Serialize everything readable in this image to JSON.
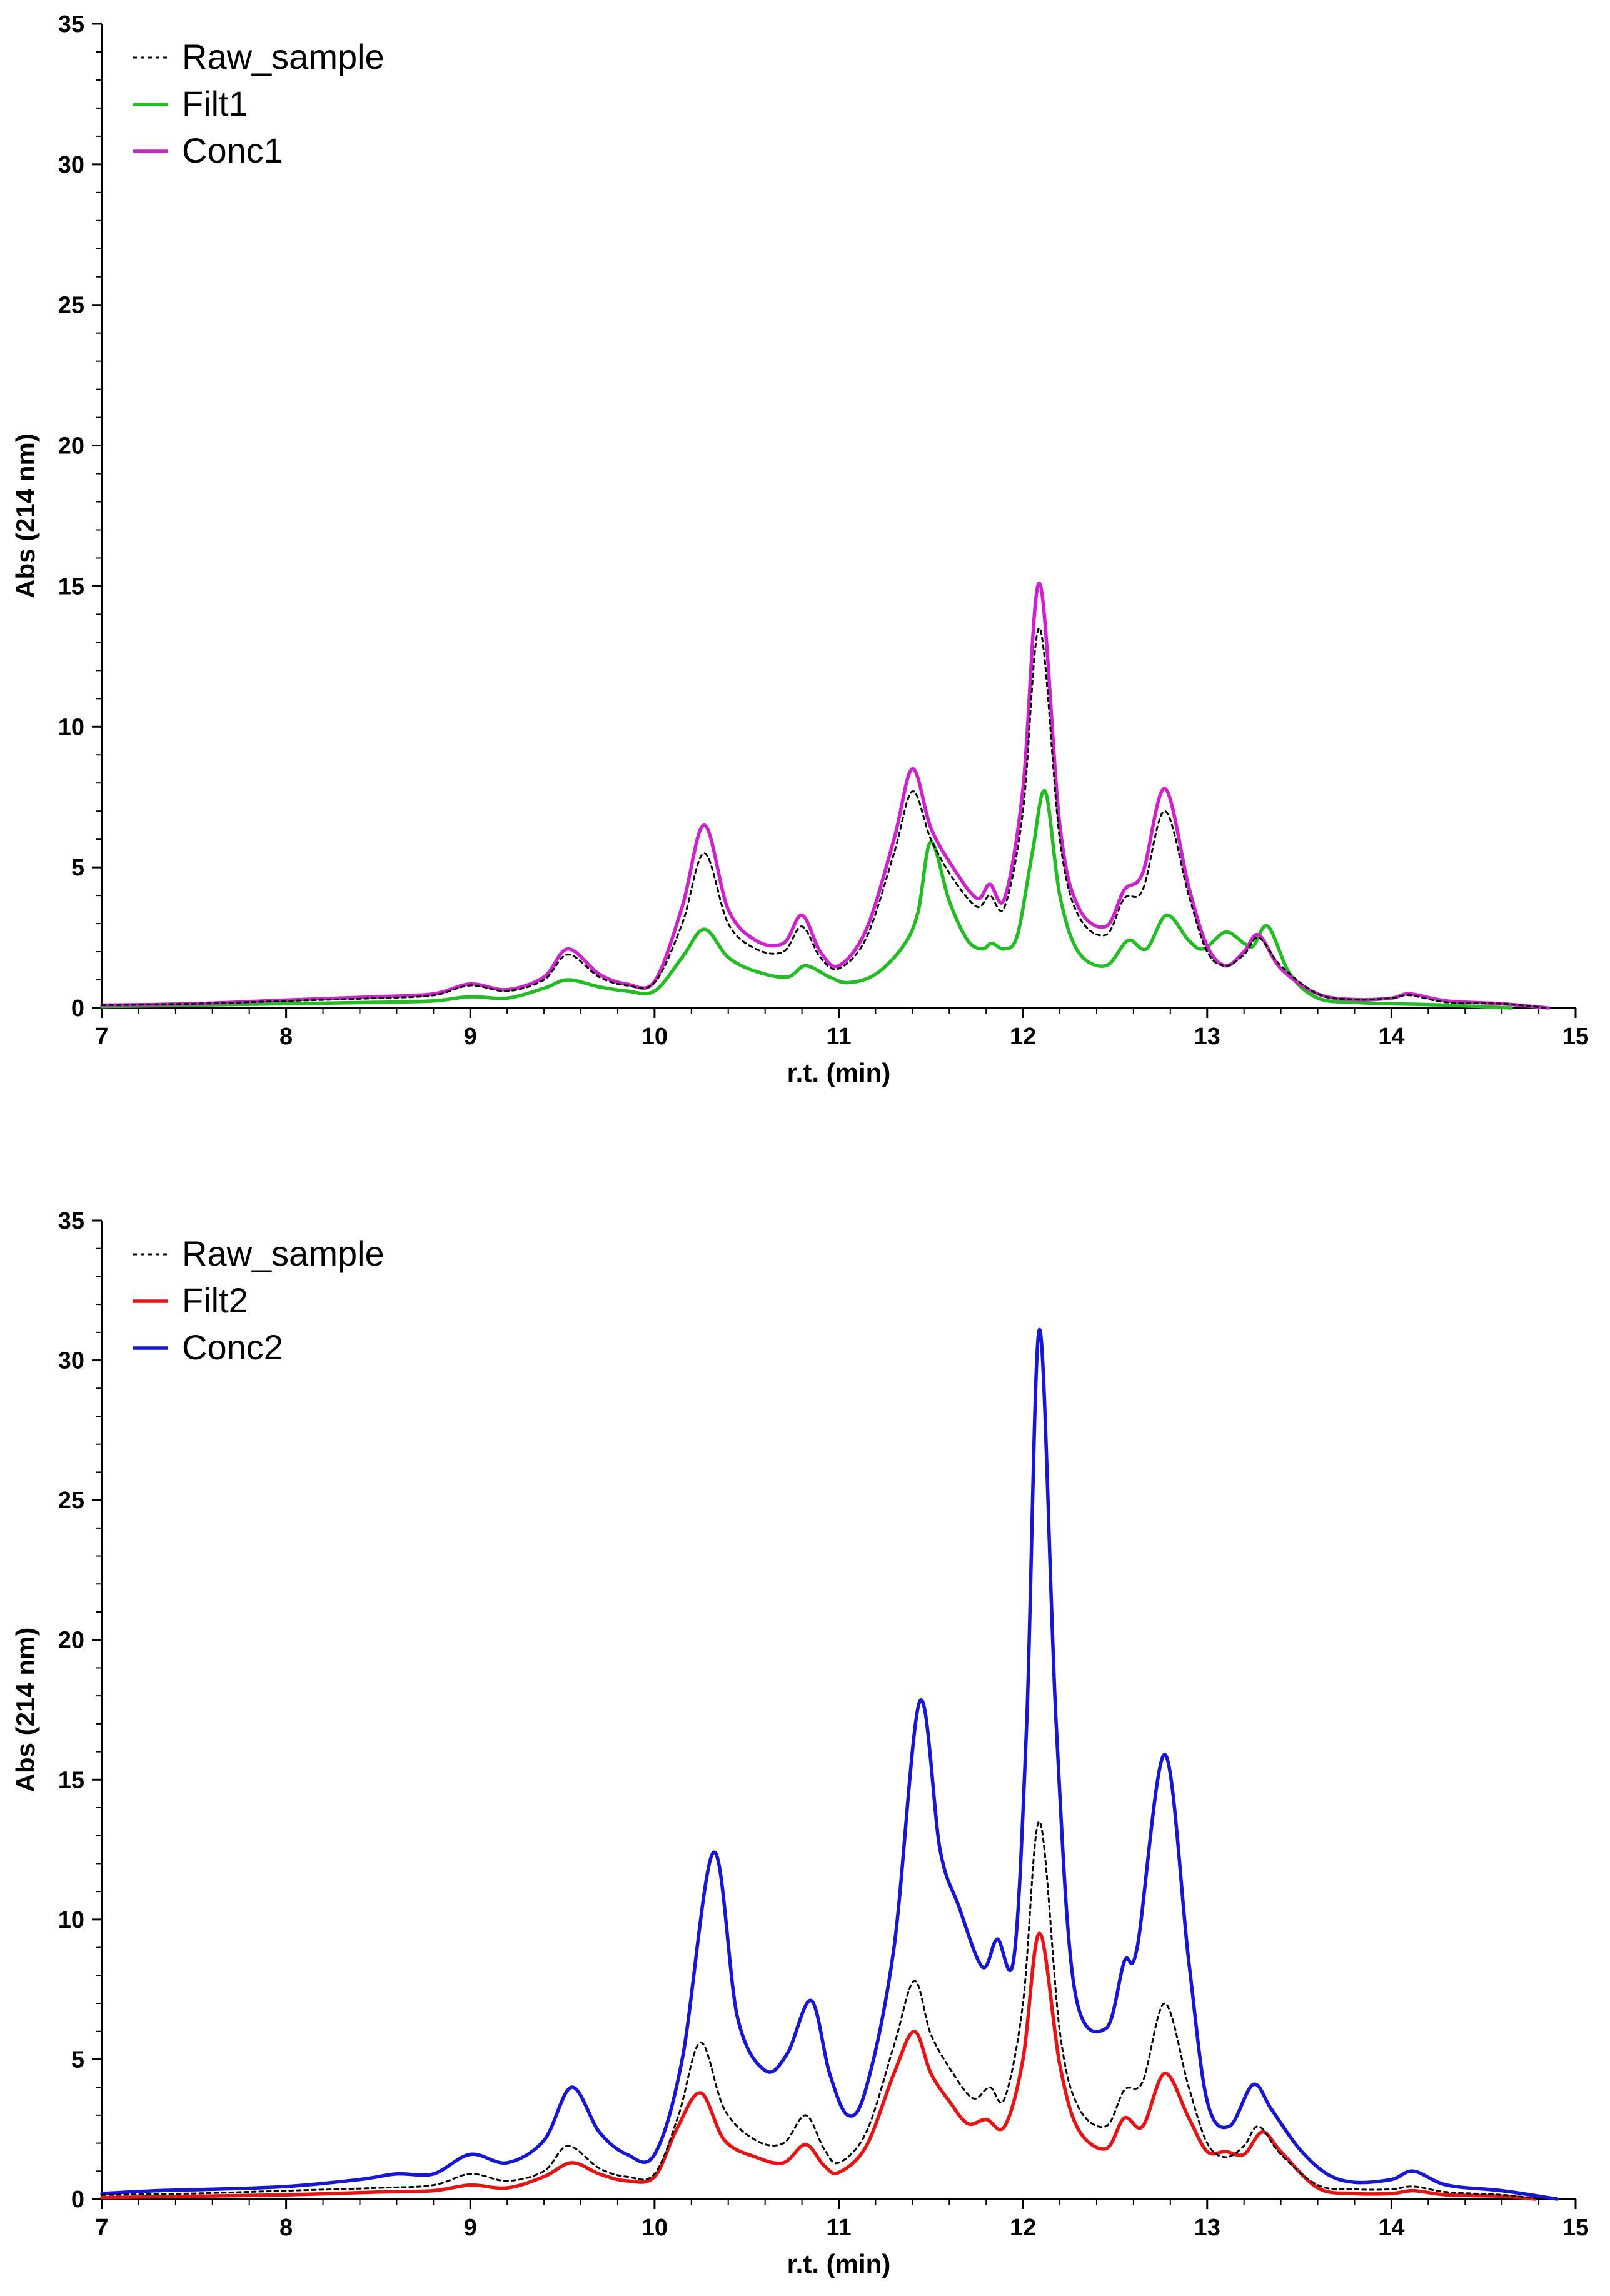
{
  "chart_data": [
    {
      "type": "line",
      "title": "",
      "xlabel": "r.t. (min)",
      "ylabel": "Abs (214 nm)",
      "xlim": [
        7,
        15
      ],
      "ylim": [
        0,
        35
      ],
      "xticks": [
        7,
        8,
        9,
        10,
        11,
        12,
        13,
        14,
        15
      ],
      "yticks": [
        0,
        5,
        10,
        15,
        20,
        25,
        30,
        35
      ],
      "grid": false,
      "legend_position": "top-left",
      "series": [
        {
          "name": "Raw_sample",
          "color": "#000000",
          "style": "dotted",
          "x": [
            7.0,
            7.5,
            8.0,
            8.5,
            8.8,
            9.0,
            9.2,
            9.4,
            9.53,
            9.7,
            9.85,
            10.0,
            10.15,
            10.27,
            10.4,
            10.55,
            10.7,
            10.8,
            10.9,
            11.0,
            11.15,
            11.3,
            11.4,
            11.5,
            11.62,
            11.75,
            11.82,
            11.9,
            12.0,
            12.09,
            12.2,
            12.3,
            12.45,
            12.55,
            12.65,
            12.77,
            12.9,
            13.0,
            13.1,
            13.2,
            13.28,
            13.4,
            13.6,
            13.8,
            14.0,
            14.1,
            14.3,
            14.6,
            14.85
          ],
          "y": [
            0.1,
            0.15,
            0.25,
            0.35,
            0.45,
            0.8,
            0.6,
            1.0,
            1.9,
            1.1,
            0.8,
            0.9,
            3.0,
            5.5,
            3.0,
            2.1,
            2.0,
            2.9,
            1.8,
            1.4,
            2.5,
            5.5,
            7.7,
            6.0,
            4.6,
            3.6,
            4.0,
            3.6,
            7.0,
            13.5,
            6.0,
            3.3,
            2.6,
            3.9,
            4.2,
            7.0,
            4.0,
            2.0,
            1.5,
            1.9,
            2.5,
            1.5,
            0.5,
            0.3,
            0.35,
            0.45,
            0.2,
            0.15,
            0.0
          ]
        },
        {
          "name": "Filt1",
          "color": "#1fbf1f",
          "style": "solid",
          "x": [
            7.0,
            7.5,
            8.0,
            8.5,
            8.8,
            9.0,
            9.2,
            9.4,
            9.53,
            9.7,
            9.85,
            10.0,
            10.15,
            10.27,
            10.4,
            10.55,
            10.72,
            10.82,
            10.95,
            11.05,
            11.2,
            11.35,
            11.43,
            11.5,
            11.6,
            11.7,
            11.78,
            11.83,
            11.9,
            11.97,
            12.05,
            12.12,
            12.2,
            12.3,
            12.45,
            12.57,
            12.67,
            12.78,
            12.9,
            12.98,
            13.1,
            13.2,
            13.25,
            13.33,
            13.45,
            13.6,
            13.8,
            14.0,
            14.3,
            14.65
          ],
          "y": [
            0.05,
            0.1,
            0.15,
            0.2,
            0.25,
            0.4,
            0.35,
            0.7,
            1.0,
            0.75,
            0.6,
            0.6,
            1.8,
            2.8,
            1.8,
            1.3,
            1.1,
            1.5,
            1.1,
            0.9,
            1.2,
            2.2,
            3.4,
            5.9,
            3.8,
            2.4,
            2.1,
            2.3,
            2.1,
            2.6,
            5.5,
            7.7,
            4.0,
            2.0,
            1.5,
            2.4,
            2.1,
            3.3,
            2.4,
            2.1,
            2.7,
            2.3,
            2.2,
            2.9,
            1.2,
            0.35,
            0.2,
            0.15,
            0.1,
            0.0
          ]
        },
        {
          "name": "Conc1",
          "color": "#d020d0",
          "style": "solid",
          "x": [
            7.0,
            7.5,
            8.0,
            8.5,
            8.8,
            9.0,
            9.2,
            9.4,
            9.53,
            9.7,
            9.85,
            10.0,
            10.15,
            10.27,
            10.4,
            10.55,
            10.7,
            10.8,
            10.9,
            11.0,
            11.15,
            11.3,
            11.4,
            11.5,
            11.62,
            11.75,
            11.82,
            11.9,
            12.0,
            12.09,
            12.2,
            12.3,
            12.45,
            12.55,
            12.65,
            12.77,
            12.9,
            13.0,
            13.1,
            13.2,
            13.28,
            13.4,
            13.6,
            13.8,
            14.0,
            14.1,
            14.3,
            14.6,
            14.85
          ],
          "y": [
            0.1,
            0.15,
            0.28,
            0.4,
            0.5,
            0.85,
            0.65,
            1.1,
            2.1,
            1.2,
            0.85,
            0.95,
            3.6,
            6.5,
            3.5,
            2.4,
            2.3,
            3.3,
            2.0,
            1.5,
            2.8,
            6.0,
            8.5,
            6.4,
            5.0,
            3.9,
            4.4,
            3.9,
            7.8,
            15.1,
            6.5,
            3.6,
            2.9,
            4.2,
            4.8,
            7.8,
            4.3,
            2.2,
            1.5,
            2.0,
            2.6,
            1.4,
            0.5,
            0.3,
            0.35,
            0.5,
            0.25,
            0.15,
            0.0
          ]
        }
      ]
    },
    {
      "type": "line",
      "title": "",
      "xlabel": "r.t. (min)",
      "ylabel": "Abs (214 nm)",
      "xlim": [
        7,
        15
      ],
      "ylim": [
        0,
        35
      ],
      "xticks": [
        7,
        8,
        9,
        10,
        11,
        12,
        13,
        14,
        15
      ],
      "yticks": [
        0,
        5,
        10,
        15,
        20,
        25,
        30,
        35
      ],
      "grid": false,
      "legend_position": "top-left",
      "series": [
        {
          "name": "Raw_sample",
          "color": "#000000",
          "style": "dotted",
          "x": [
            7.0,
            7.5,
            8.0,
            8.5,
            8.8,
            9.0,
            9.2,
            9.4,
            9.53,
            9.7,
            9.85,
            10.0,
            10.13,
            10.25,
            10.38,
            10.55,
            10.7,
            10.82,
            10.92,
            11.0,
            11.15,
            11.3,
            11.41,
            11.5,
            11.62,
            11.73,
            11.82,
            11.9,
            12.0,
            12.09,
            12.2,
            12.3,
            12.45,
            12.55,
            12.65,
            12.77,
            12.9,
            13.0,
            13.1,
            13.2,
            13.28,
            13.4,
            13.6,
            13.8,
            14.0,
            14.12,
            14.3,
            14.6,
            14.82
          ],
          "y": [
            0.15,
            0.2,
            0.3,
            0.4,
            0.5,
            0.9,
            0.65,
            1.0,
            1.9,
            1.1,
            0.8,
            0.9,
            3.0,
            5.6,
            3.2,
            2.1,
            2.0,
            3.0,
            1.8,
            1.3,
            2.4,
            5.5,
            7.8,
            5.9,
            4.5,
            3.6,
            4.0,
            3.6,
            7.0,
            13.5,
            6.0,
            3.3,
            2.6,
            3.9,
            4.2,
            7.0,
            4.0,
            2.0,
            1.5,
            1.9,
            2.6,
            1.6,
            0.5,
            0.35,
            0.35,
            0.45,
            0.25,
            0.15,
            0.0
          ]
        },
        {
          "name": "Filt2",
          "color": "#ee1111",
          "style": "solid",
          "x": [
            7.0,
            7.5,
            8.0,
            8.5,
            8.8,
            9.0,
            9.2,
            9.4,
            9.55,
            9.7,
            9.85,
            10.0,
            10.12,
            10.25,
            10.38,
            10.55,
            10.7,
            10.82,
            10.92,
            11.0,
            11.15,
            11.3,
            11.41,
            11.5,
            11.6,
            11.7,
            11.8,
            11.9,
            12.0,
            12.09,
            12.2,
            12.3,
            12.45,
            12.55,
            12.65,
            12.77,
            12.9,
            13.0,
            13.1,
            13.2,
            13.3,
            13.4,
            13.6,
            13.8,
            14.0,
            14.12,
            14.3,
            14.6,
            14.78
          ],
          "y": [
            0.05,
            0.1,
            0.15,
            0.25,
            0.3,
            0.5,
            0.4,
            0.8,
            1.3,
            0.9,
            0.65,
            0.8,
            2.5,
            3.8,
            2.1,
            1.5,
            1.3,
            1.95,
            1.2,
            0.95,
            1.9,
            4.5,
            6.0,
            4.5,
            3.5,
            2.7,
            2.85,
            2.6,
            5.0,
            9.5,
            4.8,
            2.5,
            1.8,
            2.9,
            2.6,
            4.5,
            2.9,
            1.7,
            1.7,
            1.6,
            2.4,
            1.7,
            0.4,
            0.2,
            0.2,
            0.3,
            0.15,
            0.1,
            0.0
          ]
        },
        {
          "name": "Conc2",
          "color": "#1515dd",
          "style": "solid",
          "x": [
            7.0,
            7.3,
            7.6,
            8.0,
            8.4,
            8.6,
            8.8,
            9.0,
            9.2,
            9.4,
            9.55,
            9.7,
            9.85,
            10.0,
            10.15,
            10.32,
            10.45,
            10.6,
            10.72,
            10.85,
            10.95,
            11.05,
            11.15,
            11.3,
            11.44,
            11.55,
            11.65,
            11.78,
            11.86,
            11.95,
            12.02,
            12.09,
            12.18,
            12.28,
            12.45,
            12.55,
            12.62,
            12.77,
            12.9,
            13.0,
            13.12,
            13.25,
            13.35,
            13.5,
            13.65,
            13.8,
            14.0,
            14.12,
            14.3,
            14.6,
            14.9
          ],
          "y": [
            0.2,
            0.3,
            0.35,
            0.45,
            0.7,
            0.9,
            0.9,
            1.6,
            1.3,
            2.1,
            4.0,
            2.4,
            1.6,
            1.6,
            5.0,
            12.4,
            6.5,
            4.6,
            5.2,
            7.1,
            4.5,
            3.0,
            4.0,
            9.0,
            17.8,
            12.5,
            10.5,
            8.3,
            9.3,
            8.6,
            17.0,
            31.1,
            17.0,
            7.5,
            6.1,
            8.5,
            9.0,
            15.9,
            8.5,
            3.5,
            2.6,
            4.1,
            3.2,
            1.8,
            0.9,
            0.6,
            0.7,
            1.0,
            0.5,
            0.3,
            0.0
          ]
        }
      ]
    }
  ]
}
